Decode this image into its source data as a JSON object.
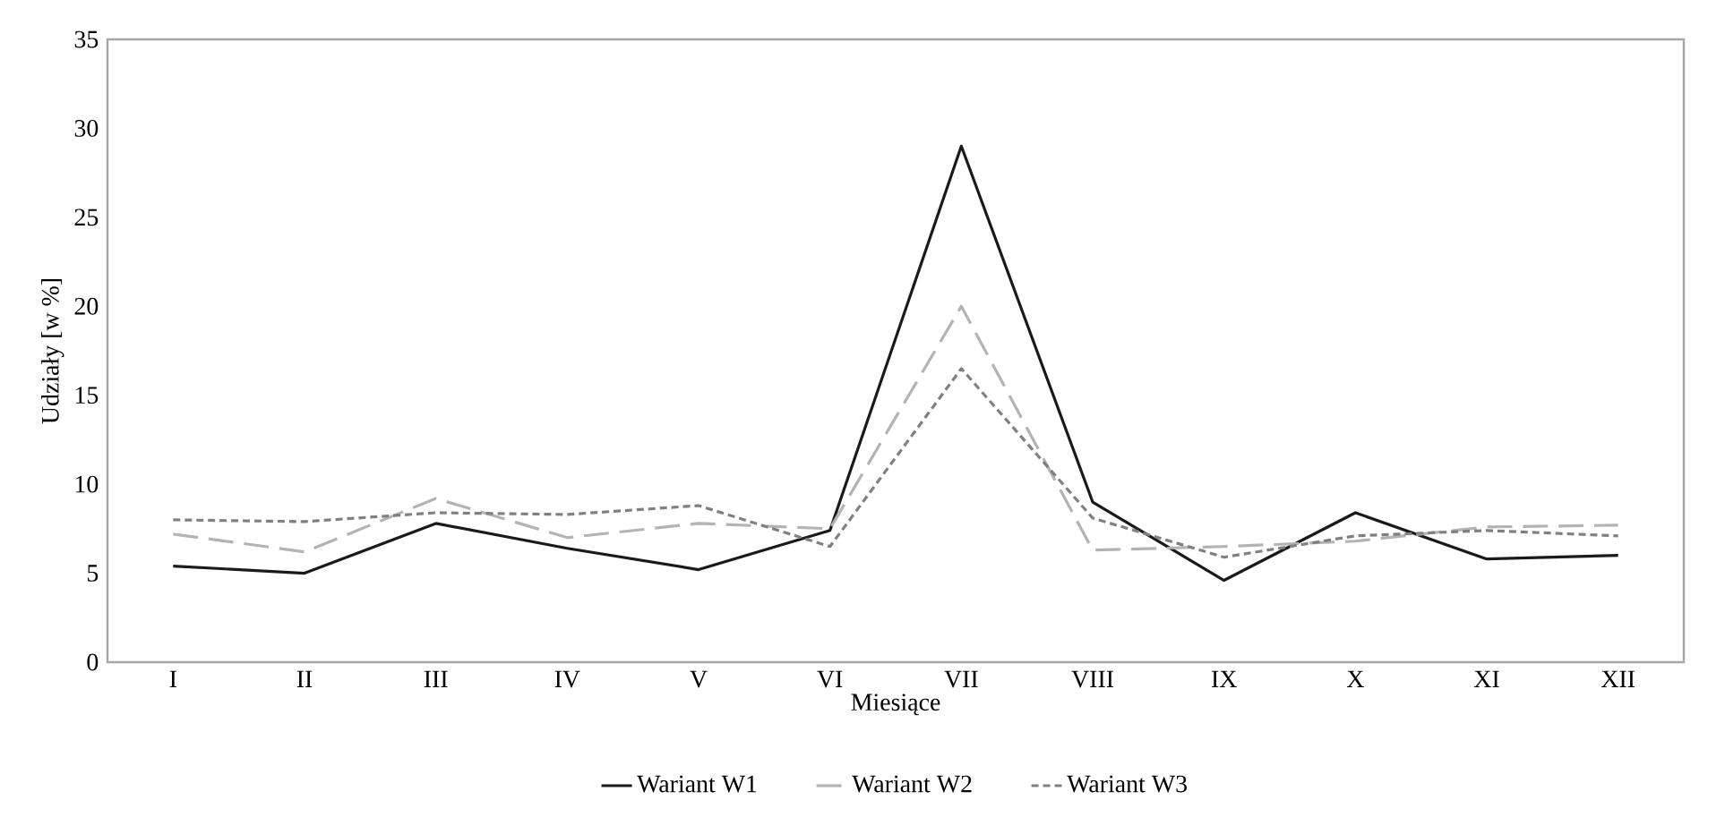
{
  "chart_data": {
    "type": "line",
    "xlabel": "Miesiące",
    "ylabel": "Udziały [w %]",
    "categories": [
      "I",
      "II",
      "III",
      "IV",
      "V",
      "VI",
      "VII",
      "VIII",
      "IX",
      "X",
      "XI",
      "XII"
    ],
    "series": [
      {
        "name": "Wariant W1",
        "color": "#1a1a1a",
        "line_style": "solid",
        "values": [
          5.4,
          5.0,
          7.8,
          6.4,
          5.2,
          7.4,
          29.0,
          9.0,
          4.6,
          8.4,
          5.8,
          6.0
        ]
      },
      {
        "name": "Wariant W2",
        "color": "#b3b3b3",
        "line_style": "dashed",
        "values": [
          7.2,
          6.2,
          9.2,
          7.0,
          7.8,
          7.5,
          20.0,
          6.3,
          6.5,
          6.8,
          7.6,
          7.7
        ]
      },
      {
        "name": "Wariant W3",
        "color": "#808080",
        "line_style": "dotted",
        "values": [
          8.0,
          7.9,
          8.4,
          8.3,
          8.8,
          6.5,
          16.5,
          8.1,
          5.9,
          7.1,
          7.4,
          7.1
        ]
      }
    ],
    "ylim": [
      0,
      35
    ],
    "yticks": [
      0,
      5,
      10,
      15,
      20,
      25,
      30,
      35
    ],
    "grid": false,
    "legend": "bottom",
    "marker": "none"
  }
}
